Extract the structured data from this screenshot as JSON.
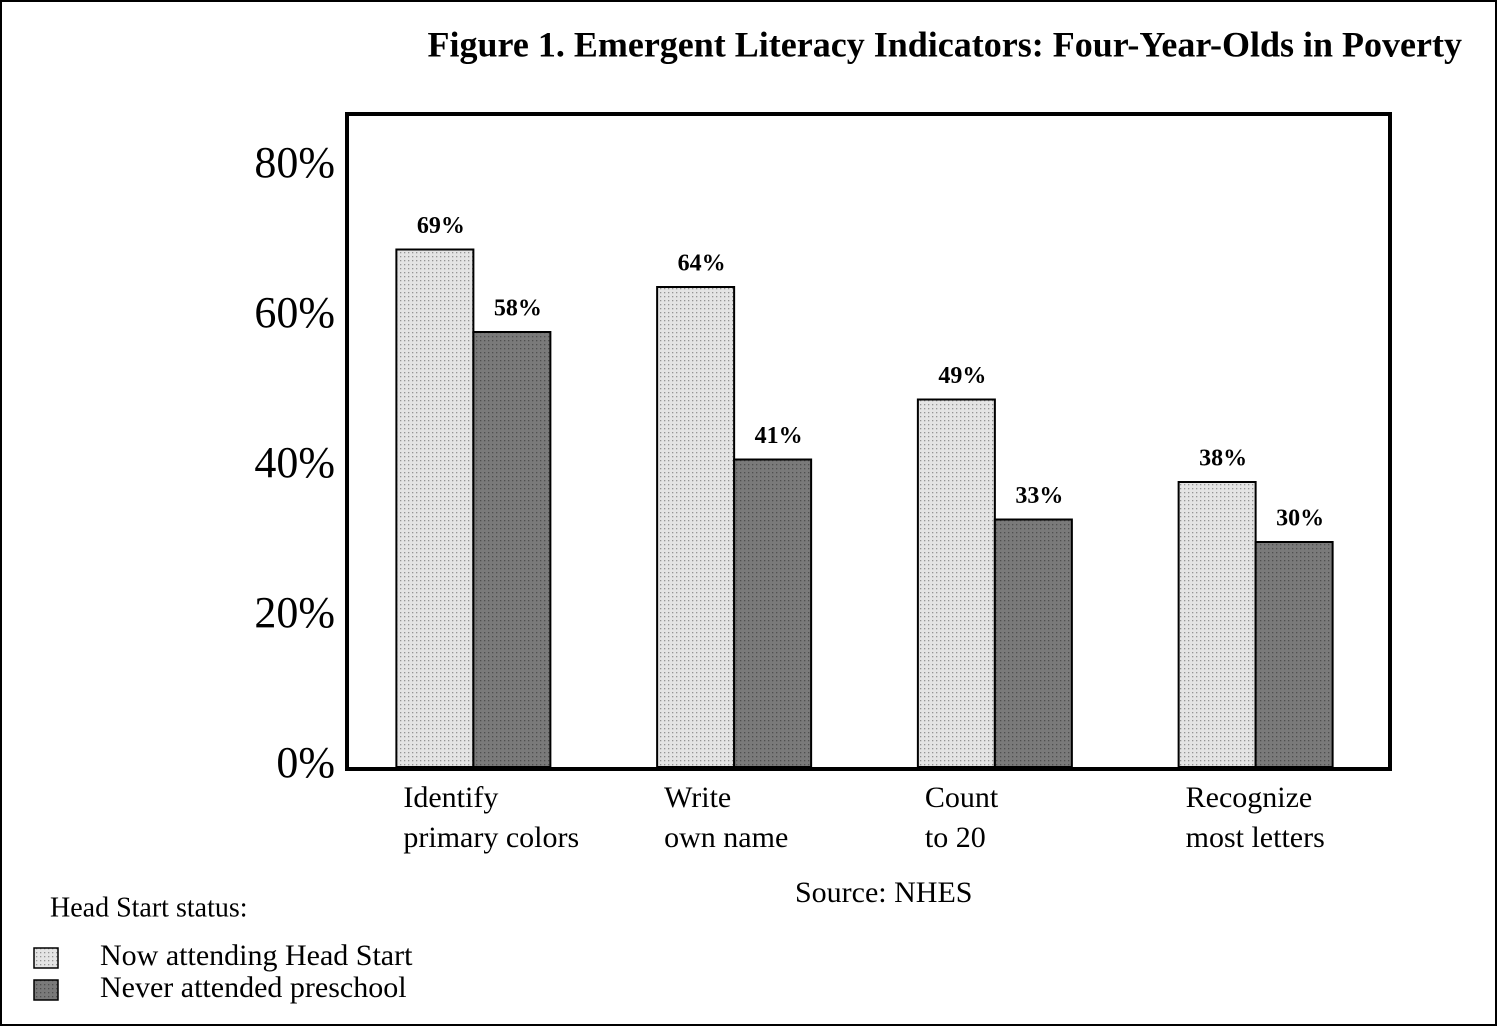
{
  "chart_data": {
    "type": "bar",
    "title": "Figure 1. Emergent Literacy Indicators:  Four-Year-Olds in Poverty",
    "categories": [
      [
        "Identify",
        "primary colors"
      ],
      [
        "Write",
        "own name"
      ],
      [
        "Count",
        "to 20"
      ],
      [
        "Recognize",
        "most letters"
      ]
    ],
    "series": [
      {
        "name": "Now attending Head Start",
        "color": "#e4e4e4",
        "values": [
          69,
          64,
          49,
          38
        ],
        "value_labels": [
          "69%",
          "64%",
          "49%",
          "38%"
        ]
      },
      {
        "name": "Never attended preschool",
        "color": "#7a7a7a",
        "values": [
          58,
          41,
          33,
          30
        ],
        "value_labels": [
          "58%",
          "41%",
          "33%",
          "30%"
        ]
      }
    ],
    "ylim": [
      0,
      80
    ],
    "yticks": [
      {
        "value": 0,
        "label": "0%"
      },
      {
        "value": 20,
        "label": "20%"
      },
      {
        "value": 40,
        "label": "40%"
      },
      {
        "value": 60,
        "label": "60%"
      },
      {
        "value": 80,
        "label": "80%"
      }
    ],
    "legend_title": "Head Start status:",
    "source": "Source:  NHES"
  }
}
